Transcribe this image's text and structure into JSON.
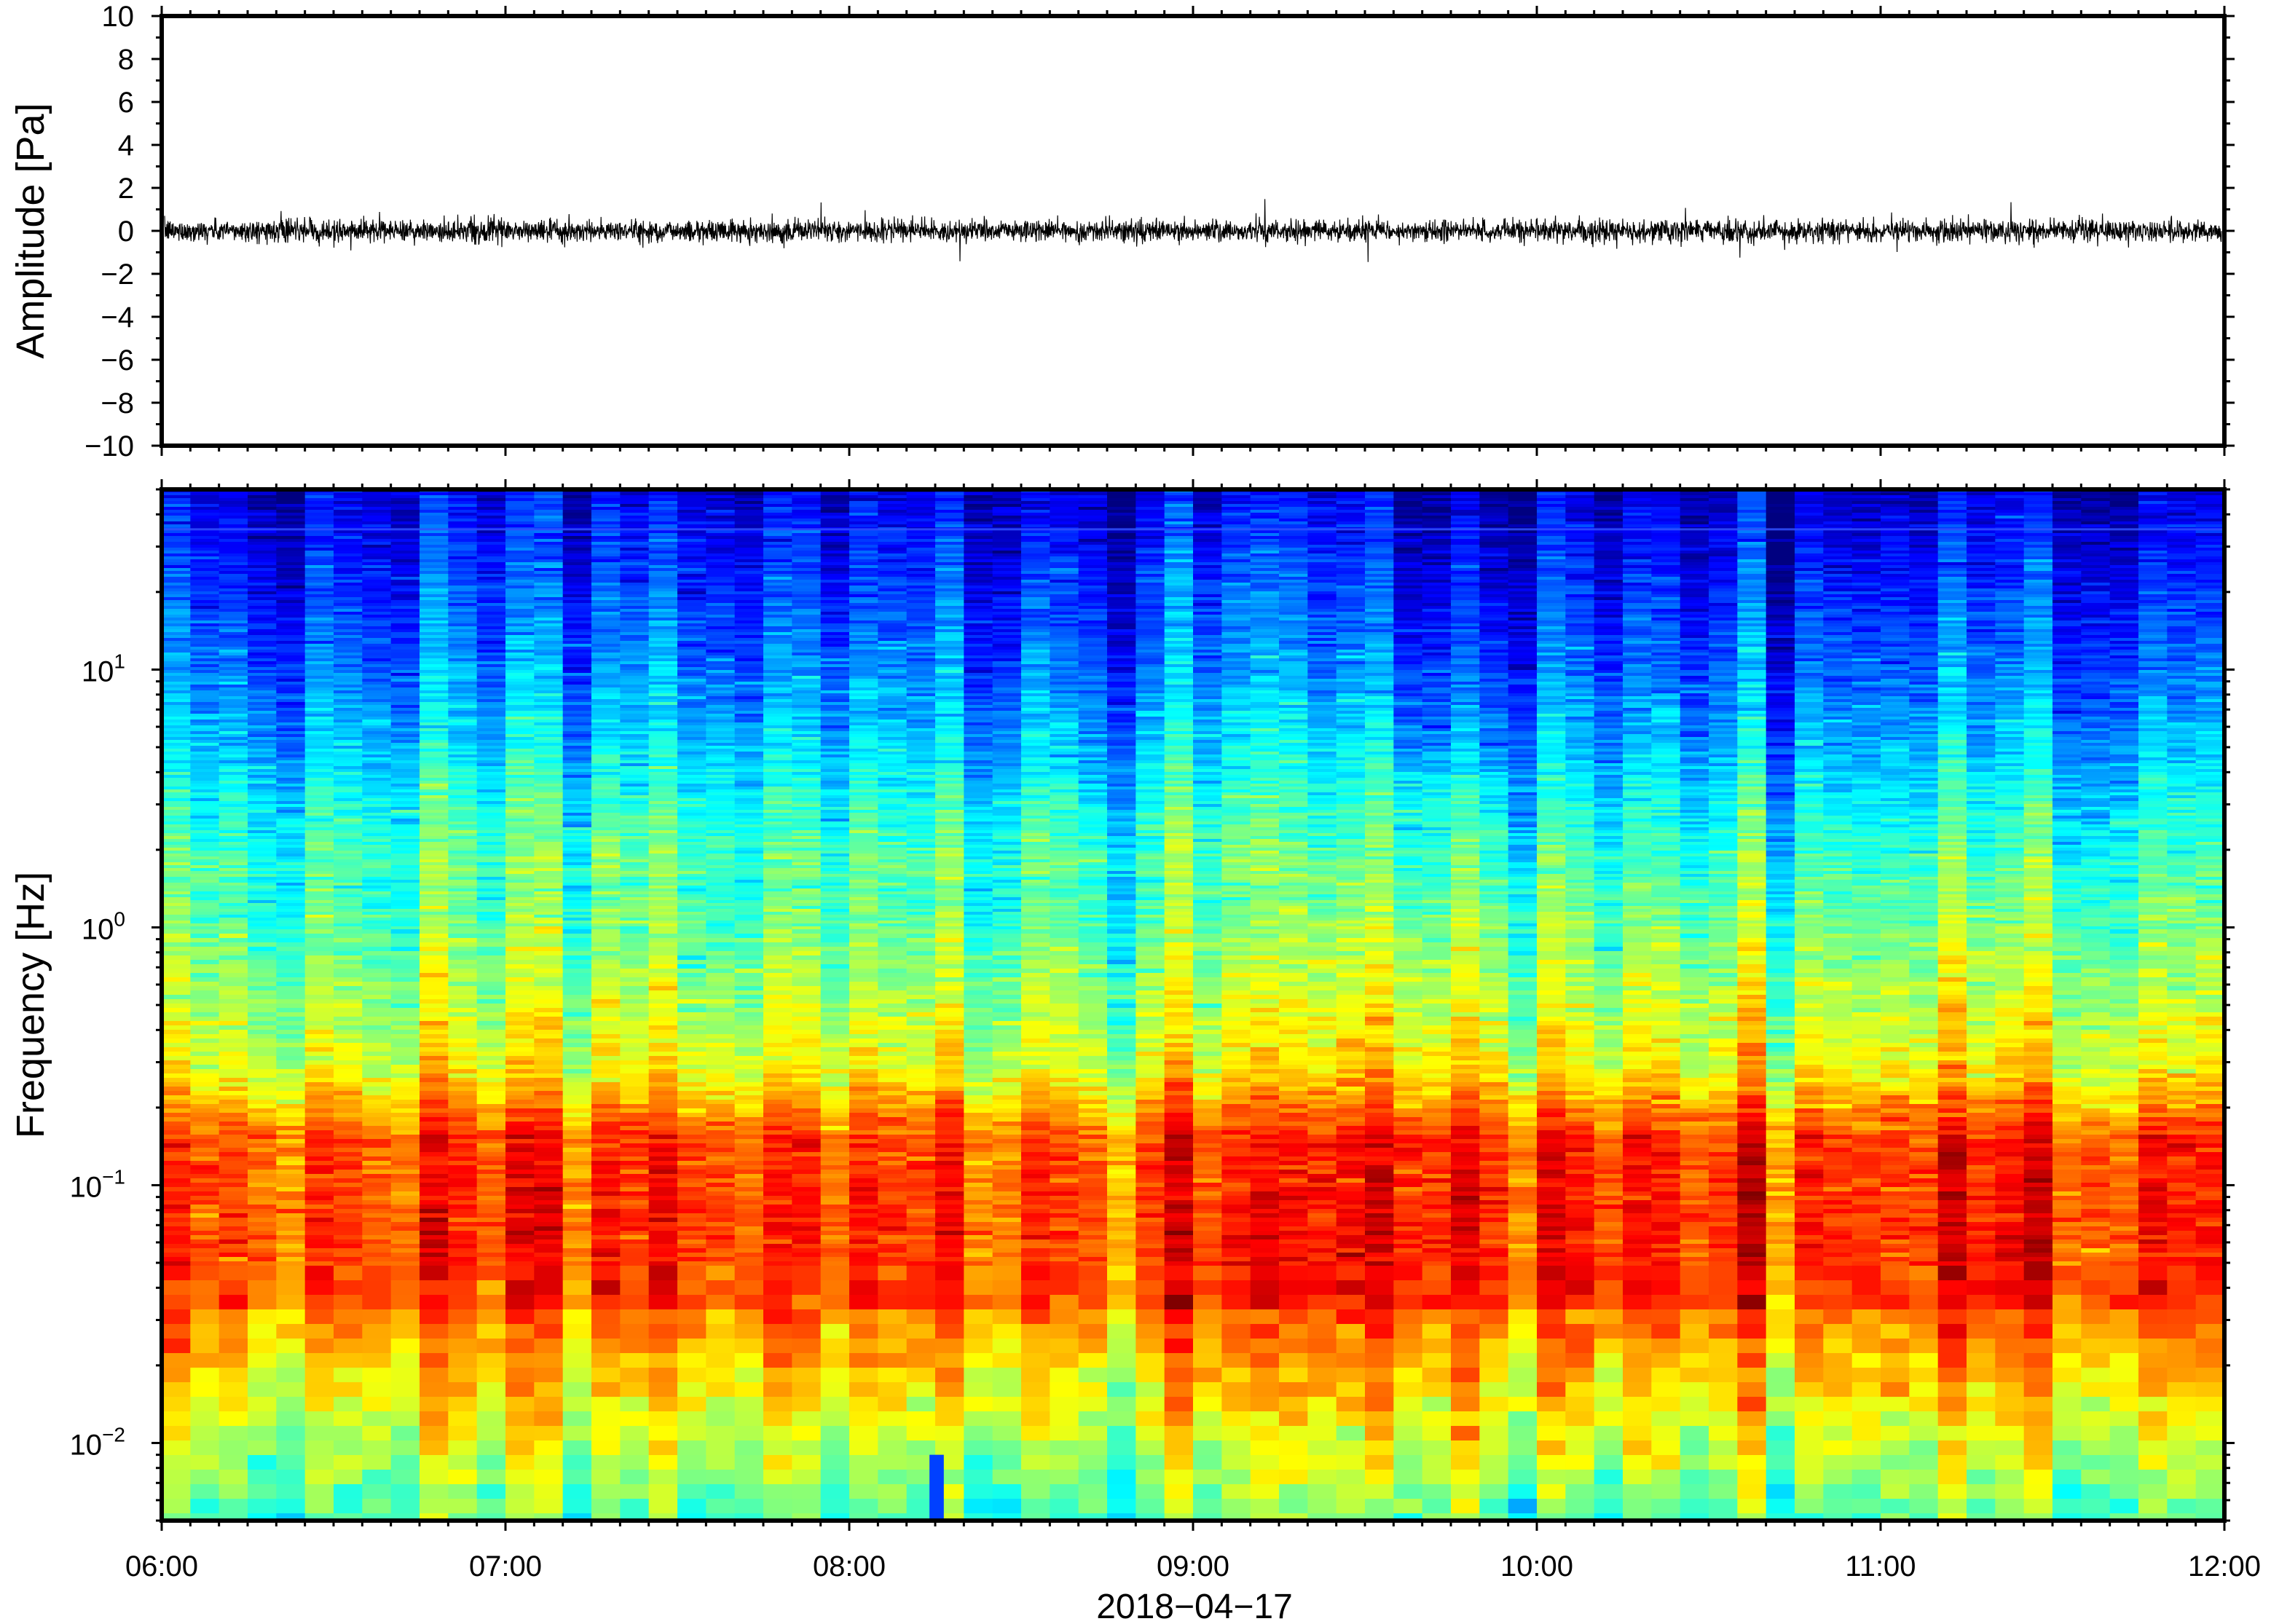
{
  "chart_data": [
    {
      "type": "line",
      "ylabel": "Amplitude [Pa]",
      "ylim": [
        -10,
        10
      ],
      "yticks": [
        10,
        8,
        6,
        4,
        2,
        0,
        -2,
        -4,
        -6,
        -8,
        -10
      ],
      "ytick_labels": [
        "10",
        "8",
        "6",
        "4",
        "2",
        "0",
        "−2",
        "−4",
        "−6",
        "−8",
        "−10"
      ],
      "x_range": [
        "06:00",
        "12:00"
      ],
      "series": [
        {
          "values_description": "",
          "trace_envelope_pa": {
            "typical": [
              -0.6,
              0.6
            ],
            "peaks": [
              -1.6,
              1.6
            ]
          }
        }
      ],
      "line_color": "#000000"
    },
    {
      "type": "heatmap",
      "ylabel": "Frequency [Hz]",
      "yscale": "log",
      "ylim": [
        0.005,
        50
      ],
      "yticks": [
        0.01,
        0.1,
        1,
        10
      ],
      "ytick_labels": [
        {
          "base": "10",
          "exp": "−2"
        },
        {
          "base": "10",
          "exp": "−1"
        },
        {
          "base": "10",
          "exp": "0"
        },
        {
          "base": "10",
          "exp": "1"
        }
      ],
      "x_range": [
        "06:00",
        "12:00"
      ],
      "xticks": [
        "06:00",
        "07:00",
        "08:00",
        "09:00",
        "10:00",
        "11:00",
        "12:00"
      ],
      "xlabel": "2018−04−17",
      "colormap": "jet",
      "colors": {
        "low": "#000080",
        "mid": "#7fffb0",
        "high": "#ff2020"
      },
      "features": {
        "tone_line_hz": 35,
        "peak_band_hz": [
          0.03,
          0.2
        ],
        "dropout_time": "08:14"
      }
    }
  ]
}
